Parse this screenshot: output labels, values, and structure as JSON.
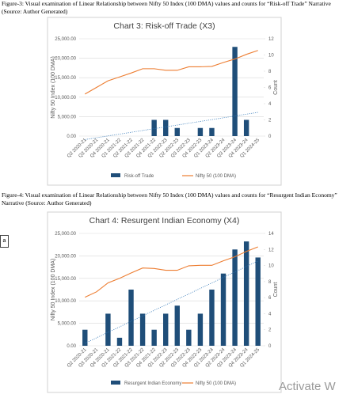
{
  "document": {
    "captions": [
      "Figure-3: Visual examination of Linear Relationship between Nifty 50 Index (100 DMA) values and counts for “Risk-off Trade” Narrative (Source: Author Generated)",
      "Figure-4: Visual examination of Linear Relationship between Nifty 50 Index (100 DMA) values and counts for “Resurgent Indian Economy” Narrative (Source: Author Generated)"
    ],
    "side_tag": "a",
    "watermark": "Activate W"
  },
  "chart_data": [
    {
      "type": "bar",
      "title": "Chart 3: Risk-off Trade (X3)",
      "y_label": "Nifty 50 Index (100 DMA)",
      "y2_label": "Count",
      "categories": [
        "Q2 2020-21",
        "Q3 2020-21",
        "Q4 2020-21",
        "Q1 2021-22",
        "Q2 2021-22",
        "Q3 2021-22",
        "Q4 2021-22",
        "Q1 2022-23",
        "Q2 2022-23",
        "Q3 2022-23",
        "Q4 2022-23",
        "Q1 2023-24",
        "Q2 2023-24",
        "Q3 2023-24",
        "Q4 2023-24",
        "Q1 2024-25"
      ],
      "series": [
        {
          "name": "Risk-off Trade",
          "type": "bar",
          "axis": "y2",
          "color": "#1f4e79",
          "values": [
            0,
            0,
            0,
            0,
            0,
            0,
            2,
            2,
            1,
            0,
            1,
            1,
            0,
            11,
            2,
            0
          ]
        },
        {
          "name": "Nifty 50 (100 DMA)",
          "type": "line",
          "axis": "y",
          "color": "#ed7d31",
          "values": [
            10800,
            12500,
            14200,
            15200,
            16200,
            17300,
            17300,
            16900,
            16900,
            17800,
            17800,
            17900,
            18900,
            19800,
            21000,
            22000
          ]
        }
      ],
      "trendline": true,
      "ylim": [
        0,
        25000
      ],
      "yticks": [
        {
          "value": 0,
          "label": "0.00"
        },
        {
          "value": 5000,
          "label": "5,000.00"
        },
        {
          "value": 10000,
          "label": "10,000.00"
        },
        {
          "value": 15000,
          "label": "15,000.00"
        },
        {
          "value": 20000,
          "label": "20,000.00"
        },
        {
          "value": 25000,
          "label": "25,000.00"
        }
      ],
      "y2lim": [
        0,
        12
      ],
      "y2ticks": [
        0,
        2,
        4,
        6,
        8,
        10,
        12
      ]
    },
    {
      "type": "bar",
      "title": "Chart 4: Resurgent Indian Economy (X4)",
      "y_label": "Nifty 50 Index (100 DMA)",
      "y2_label": "Count",
      "categories": [
        "Q2 2020-21",
        "Q3 2020-21",
        "Q4 2020-21",
        "Q1 2021-22",
        "Q2 2021-22",
        "Q3 2021-22",
        "Q4 2021-22",
        "Q1 2022-23",
        "Q2 2022-23",
        "Q3 2022-23",
        "Q4 2022-23",
        "Q1 2023-24",
        "Q2 2023-24",
        "Q3 2023-24",
        "Q4 2023-24",
        "Q1 2024-25"
      ],
      "series": [
        {
          "name": "Resurgent Indian Economy",
          "type": "bar",
          "axis": "y2",
          "color": "#1f4e79",
          "values": [
            2,
            0,
            4,
            1,
            7,
            4,
            2,
            4,
            5,
            2,
            4,
            7,
            9,
            12,
            13,
            11
          ]
        },
        {
          "name": "Nifty 50 (100 DMA)",
          "type": "line",
          "axis": "y",
          "color": "#ed7d31",
          "values": [
            10800,
            12000,
            14000,
            15000,
            16200,
            17300,
            17200,
            16800,
            16800,
            17800,
            17900,
            17900,
            18900,
            19800,
            21000,
            22000
          ]
        }
      ],
      "trendline": true,
      "ylim": [
        0,
        25000
      ],
      "yticks": [
        {
          "value": 0,
          "label": "0.00"
        },
        {
          "value": 5000,
          "label": "5,000.00"
        },
        {
          "value": 10000,
          "label": "10,000.00"
        },
        {
          "value": 15000,
          "label": "15,000.00"
        },
        {
          "value": 20000,
          "label": "20,000.00"
        },
        {
          "value": 25000,
          "label": "25,000.00"
        }
      ],
      "y2lim": [
        0,
        14
      ],
      "y2ticks": [
        0,
        2,
        4,
        6,
        8,
        10,
        12,
        14
      ]
    }
  ]
}
